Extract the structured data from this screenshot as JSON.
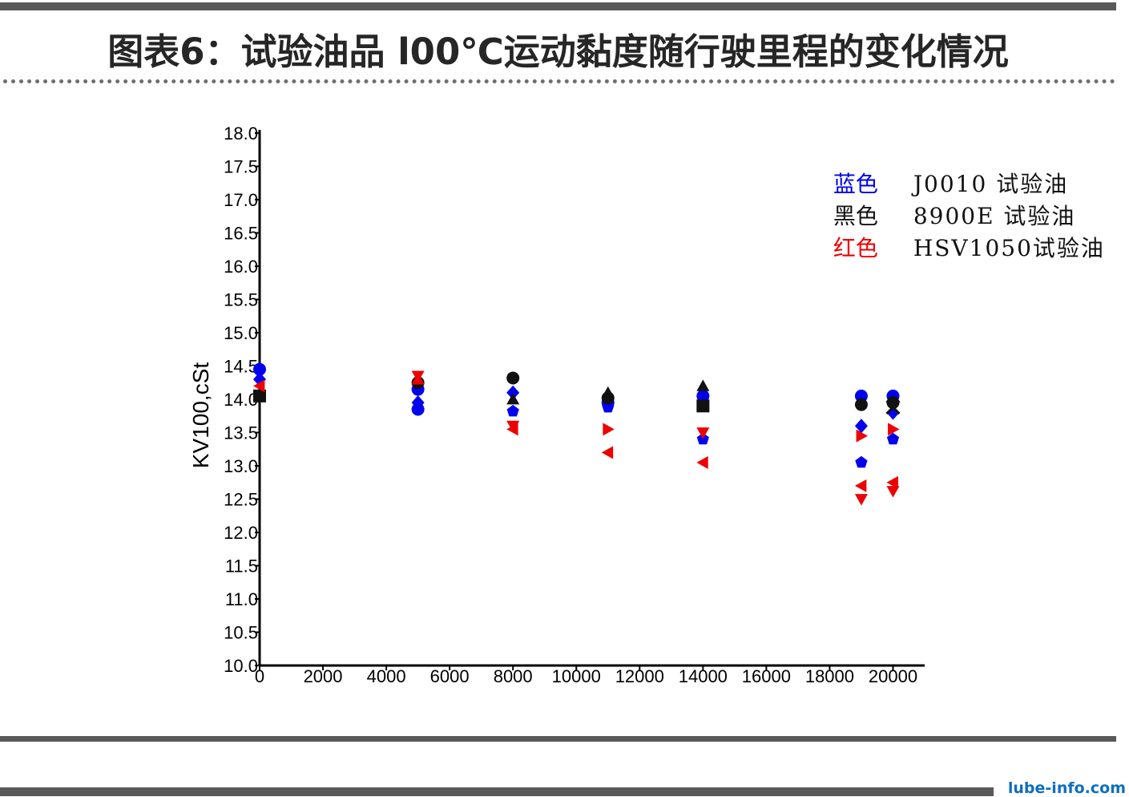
{
  "header": {
    "title": "图表6：试验油品 l00℃运动黏度随行驶里程的变化情况"
  },
  "watermark": "lube-info.com",
  "legend": [
    {
      "color_word": "蓝色",
      "label": "J0010 试验油",
      "color": "#0000ee"
    },
    {
      "color_word": "黑色",
      "label": "8900E 试验油",
      "color": "#111111"
    },
    {
      "color_word": "红色",
      "label": "HSV1050试验油",
      "color": "#ee0000"
    }
  ],
  "chart_data": {
    "type": "scatter",
    "title": "",
    "xlabel": "",
    "ylabel": "KV100,cSt",
    "xlim": [
      0,
      21000
    ],
    "ylim": [
      10.0,
      18.0
    ],
    "x_ticks": [
      "0",
      "2000",
      "4000",
      "6000",
      "8000",
      "10000",
      "12000",
      "14000",
      "16000",
      "18000",
      "20000"
    ],
    "y_ticks": [
      "10.0",
      "10.5",
      "11.0",
      "11.5",
      "12.0",
      "12.5",
      "13.0",
      "13.5",
      "14.0",
      "14.5",
      "15.0",
      "15.5",
      "16.0",
      "16.5",
      "17.0",
      "17.5",
      "18.0"
    ],
    "grid": false,
    "legend_position": "top-right",
    "series": [
      {
        "name": "J0010 试验油",
        "color": "#0000ee",
        "points": [
          {
            "x": 0,
            "y": 14.45,
            "marker": "circle"
          },
          {
            "x": 0,
            "y": 14.3,
            "marker": "diamond"
          },
          {
            "x": 5000,
            "y": 14.15,
            "marker": "circle"
          },
          {
            "x": 5000,
            "y": 13.95,
            "marker": "diamond"
          },
          {
            "x": 5000,
            "y": 13.85,
            "marker": "circle"
          },
          {
            "x": 8000,
            "y": 14.1,
            "marker": "diamond"
          },
          {
            "x": 8000,
            "y": 13.82,
            "marker": "pentagon"
          },
          {
            "x": 11000,
            "y": 13.95,
            "marker": "circle"
          },
          {
            "x": 11000,
            "y": 13.88,
            "marker": "pentagon"
          },
          {
            "x": 14000,
            "y": 14.05,
            "marker": "circle"
          },
          {
            "x": 14000,
            "y": 13.95,
            "marker": "diamond"
          },
          {
            "x": 14000,
            "y": 13.4,
            "marker": "pentagon"
          },
          {
            "x": 19000,
            "y": 14.05,
            "marker": "circle"
          },
          {
            "x": 19000,
            "y": 13.6,
            "marker": "diamond"
          },
          {
            "x": 19000,
            "y": 13.05,
            "marker": "pentagon"
          },
          {
            "x": 20000,
            "y": 14.05,
            "marker": "circle"
          },
          {
            "x": 20000,
            "y": 13.8,
            "marker": "diamond"
          },
          {
            "x": 20000,
            "y": 13.4,
            "marker": "pentagon"
          }
        ]
      },
      {
        "name": "8900E 试验油",
        "color": "#111111",
        "points": [
          {
            "x": 0,
            "y": 14.05,
            "marker": "square"
          },
          {
            "x": 5000,
            "y": 14.25,
            "marker": "circle"
          },
          {
            "x": 8000,
            "y": 14.32,
            "marker": "circle"
          },
          {
            "x": 8000,
            "y": 14.0,
            "marker": "triangle-up"
          },
          {
            "x": 11000,
            "y": 14.1,
            "marker": "triangle-up"
          },
          {
            "x": 11000,
            "y": 14.02,
            "marker": "circle"
          },
          {
            "x": 14000,
            "y": 14.2,
            "marker": "triangle-up"
          },
          {
            "x": 14000,
            "y": 13.9,
            "marker": "square"
          },
          {
            "x": 19000,
            "y": 13.92,
            "marker": "circle"
          },
          {
            "x": 20000,
            "y": 13.95,
            "marker": "circle"
          },
          {
            "x": 20000,
            "y": 13.88,
            "marker": "x"
          }
        ]
      },
      {
        "name": "HSV1050试验油",
        "color": "#ee0000",
        "points": [
          {
            "x": 0,
            "y": 14.2,
            "marker": "triangle-left"
          },
          {
            "x": 5000,
            "y": 14.35,
            "marker": "triangle-down"
          },
          {
            "x": 5000,
            "y": 14.3,
            "marker": "triangle-up"
          },
          {
            "x": 8000,
            "y": 13.6,
            "marker": "triangle-down"
          },
          {
            "x": 8000,
            "y": 13.55,
            "marker": "triangle-left"
          },
          {
            "x": 11000,
            "y": 13.55,
            "marker": "triangle-right"
          },
          {
            "x": 11000,
            "y": 13.2,
            "marker": "triangle-left"
          },
          {
            "x": 14000,
            "y": 13.5,
            "marker": "triangle-down"
          },
          {
            "x": 14000,
            "y": 13.05,
            "marker": "triangle-left"
          },
          {
            "x": 19000,
            "y": 13.45,
            "marker": "triangle-right"
          },
          {
            "x": 19000,
            "y": 12.7,
            "marker": "triangle-left"
          },
          {
            "x": 19000,
            "y": 12.5,
            "marker": "triangle-down"
          },
          {
            "x": 20000,
            "y": 13.55,
            "marker": "triangle-right"
          },
          {
            "x": 20000,
            "y": 12.75,
            "marker": "triangle-left"
          },
          {
            "x": 20000,
            "y": 12.62,
            "marker": "triangle-down"
          }
        ]
      }
    ]
  }
}
